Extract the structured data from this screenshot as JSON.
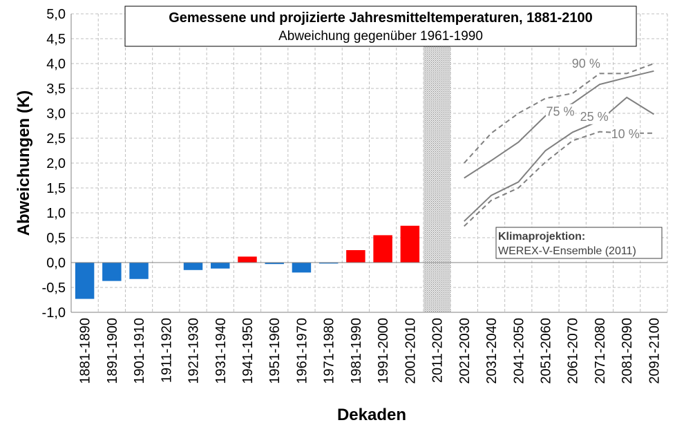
{
  "chart_data": {
    "type": "bar",
    "title": "Gemessene und projizierte Jahresmitteltemperaturen, 1881-2100",
    "subtitle": "Abweichung gegenüber 1961-1990",
    "xlabel": "Dekaden",
    "ylabel": "Abweichungen (K)",
    "ylim": [
      -1.0,
      5.0
    ],
    "yticks": [
      "-1,0",
      "-0,5",
      "0,0",
      "0,5",
      "1,0",
      "1,5",
      "2,0",
      "2,5",
      "3,0",
      "3,5",
      "4,0",
      "4,5",
      "5,0"
    ],
    "grid": true,
    "categories": [
      "1881-1890",
      "1891-1900",
      "1901-1910",
      "1911-1920",
      "1921-1930",
      "1931-1940",
      "1941-1950",
      "1951-1960",
      "1961-1970",
      "1971-1980",
      "1981-1990",
      "1991-2000",
      "2001-2010",
      "2011-2020",
      "2021-2030",
      "2031-2040",
      "2041-2050",
      "2051-2060",
      "2061-2070",
      "2071-2080",
      "2081-2090",
      "2091-2100"
    ],
    "measured": [
      -0.73,
      -0.37,
      -0.33,
      null,
      -0.15,
      -0.12,
      0.12,
      -0.03,
      -0.2,
      -0.02,
      0.25,
      0.55,
      0.74
    ],
    "colors": {
      "negative": "#1874CD",
      "positive": "#FF0000",
      "projection": "#808080",
      "grid": "#BFBFBF"
    },
    "gap_category": "2011-2020",
    "projection": [
      {
        "name": "90 %",
        "dashed": true,
        "x": [
          "2021-2030",
          "2031-2040",
          "2041-2050",
          "2051-2060",
          "2061-2070",
          "2071-2080",
          "2081-2090",
          "2091-2100"
        ],
        "values": [
          2.0,
          2.6,
          3.0,
          3.3,
          3.4,
          3.8,
          3.8,
          4.0
        ]
      },
      {
        "name": "75 %",
        "dashed": false,
        "x": [
          "2021-2030",
          "2031-2040",
          "2041-2050",
          "2051-2060",
          "2061-2070",
          "2071-2080",
          "2081-2090",
          "2091-2100"
        ],
        "values": [
          1.7,
          2.05,
          2.42,
          2.95,
          3.2,
          3.58,
          3.72,
          3.85
        ]
      },
      {
        "name": "25 %",
        "dashed": false,
        "x": [
          "2021-2030",
          "2031-2040",
          "2041-2050",
          "2051-2060",
          "2061-2070",
          "2071-2080",
          "2081-2090",
          "2091-2100"
        ],
        "values": [
          0.83,
          1.35,
          1.62,
          2.25,
          2.62,
          2.85,
          3.32,
          2.98
        ]
      },
      {
        "name": "10 %",
        "dashed": true,
        "x": [
          "2021-2030",
          "2031-2040",
          "2041-2050",
          "2051-2060",
          "2061-2070",
          "2071-2080",
          "2081-2090",
          "2091-2100"
        ],
        "values": [
          0.73,
          1.25,
          1.5,
          2.02,
          2.45,
          2.63,
          2.6,
          2.6
        ]
      }
    ],
    "projection_labels": [
      {
        "series": "90 %",
        "text": "90 %"
      },
      {
        "series": "75 %",
        "text": "75 %"
      },
      {
        "series": "25 %",
        "text": "25 %"
      },
      {
        "series": "10 %",
        "text": "10 %"
      }
    ],
    "annotation": {
      "title": "Klimaprojektion:",
      "text": "WEREX-V-Ensemble (2011)"
    }
  }
}
